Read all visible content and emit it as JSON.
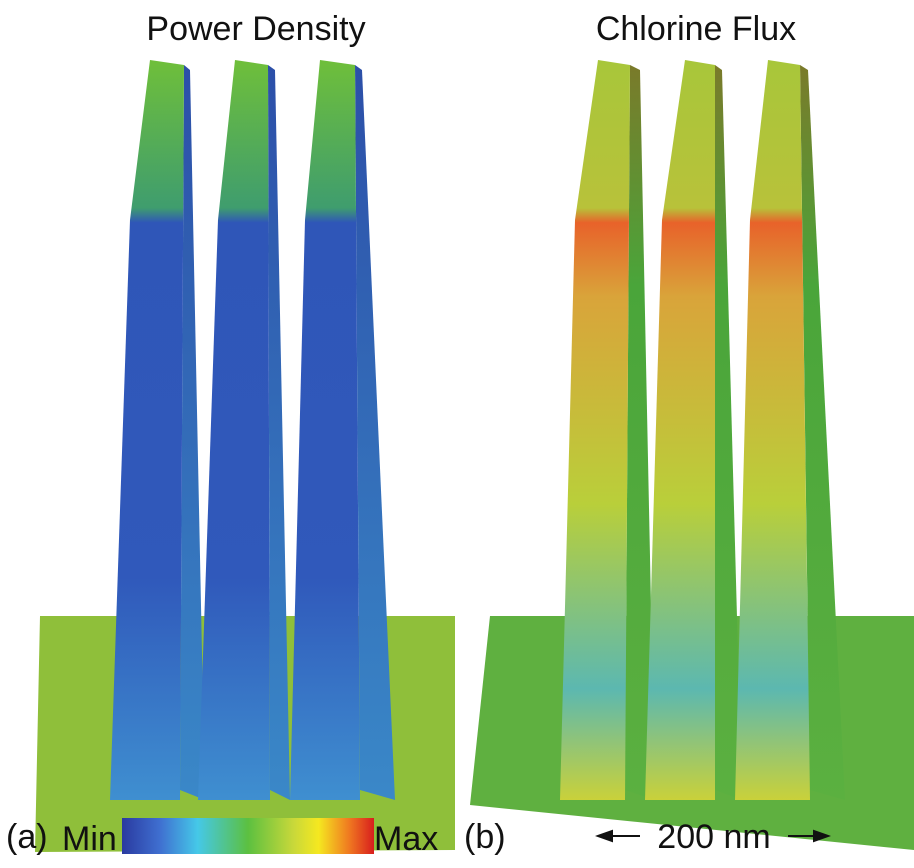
{
  "panels": [
    {
      "title": "Power Density",
      "label": "(a)"
    },
    {
      "title": "Chlorine Flux",
      "label": "(b)"
    }
  ],
  "colorbar": {
    "min": "Min",
    "max": "Max"
  },
  "scale_bar": "200 nm"
}
